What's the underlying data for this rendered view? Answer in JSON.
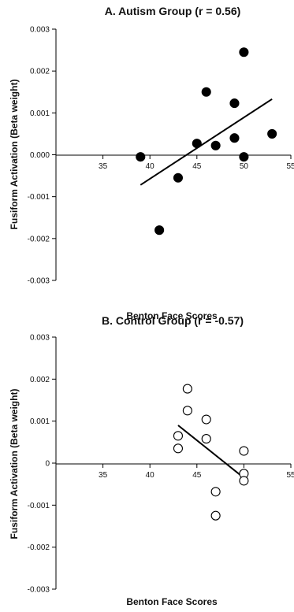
{
  "chart_data": [
    {
      "type": "scatter",
      "title": "A. Autism Group (r = 0.56)",
      "xlabel": "Benton Face Scores",
      "ylabel": "Fusiform Activation (Beta weight)",
      "xlim": [
        30,
        55
      ],
      "ylim": [
        -0.003,
        0.003
      ],
      "x_ticks": [
        35,
        40,
        45,
        50,
        55
      ],
      "y_ticks": [
        "0.003",
        "0.002",
        "0.001",
        "0.000",
        "-0.001",
        "-0.002",
        "-0.003"
      ],
      "marker": "filled-circle",
      "points": [
        {
          "x": 39,
          "y": -5e-05
        },
        {
          "x": 41,
          "y": -0.0018
        },
        {
          "x": 43,
          "y": -0.00055
        },
        {
          "x": 45,
          "y": 0.00027
        },
        {
          "x": 46,
          "y": 0.0015
        },
        {
          "x": 47,
          "y": 0.00022
        },
        {
          "x": 49,
          "y": 0.0004
        },
        {
          "x": 49,
          "y": 0.00123
        },
        {
          "x": 50,
          "y": 0.00245
        },
        {
          "x": 50,
          "y": -5e-05
        },
        {
          "x": 53,
          "y": 0.0005
        }
      ],
      "fit_line": {
        "x": [
          39,
          53
        ],
        "y": [
          -0.00072,
          0.00133
        ]
      },
      "grid": false
    },
    {
      "type": "scatter",
      "title": "B. Control Group (r = -0.57)",
      "xlabel": "Benton Face Scores",
      "ylabel": "Fusiform Activation (Beta weight)",
      "xlim": [
        30,
        55
      ],
      "ylim": [
        -0.003,
        0.003
      ],
      "x_ticks": [
        35,
        40,
        45,
        50,
        55
      ],
      "y_ticks": [
        "0.003",
        "0.002",
        "0.001",
        "0",
        "-0.001",
        "-0.002",
        "-0.003"
      ],
      "marker": "open-circle",
      "points": [
        {
          "x": 43,
          "y": 0.00065
        },
        {
          "x": 43,
          "y": 0.00035
        },
        {
          "x": 44,
          "y": 0.00177
        },
        {
          "x": 44,
          "y": 0.00125
        },
        {
          "x": 46,
          "y": 0.00104
        },
        {
          "x": 46,
          "y": 0.00058
        },
        {
          "x": 47,
          "y": -0.00068
        },
        {
          "x": 47,
          "y": -0.00125
        },
        {
          "x": 50,
          "y": 0.00029
        },
        {
          "x": 50,
          "y": -0.00025
        },
        {
          "x": 50,
          "y": -0.00042
        }
      ],
      "fit_line": {
        "x": [
          43,
          50
        ],
        "y": [
          0.0009,
          -0.00035
        ]
      },
      "grid": false
    }
  ]
}
